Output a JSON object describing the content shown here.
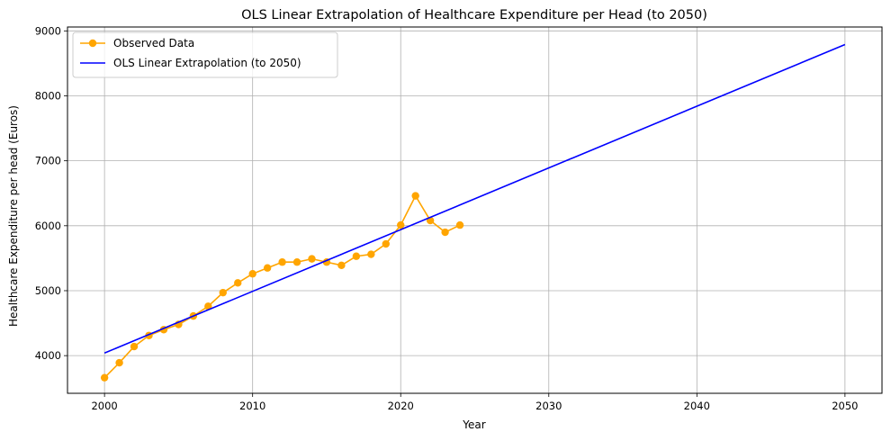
{
  "chart_data": {
    "type": "line",
    "title": "OLS Linear Extrapolation of Healthcare Expenditure per Head (to 2050)",
    "xlabel": "Year",
    "ylabel": "Healthcare Expenditure per head (Euros)",
    "xlim": [
      1997.5,
      2052.5
    ],
    "ylim": [
      3420,
      9060
    ],
    "xticks": [
      2000,
      2010,
      2020,
      2030,
      2040,
      2050
    ],
    "yticks": [
      4000,
      5000,
      6000,
      7000,
      8000,
      9000
    ],
    "grid": true,
    "legend_position": "top-left",
    "series": [
      {
        "name": "Observed Data",
        "color": "#ffa500",
        "marker": "circle",
        "x": [
          2000,
          2001,
          2002,
          2003,
          2004,
          2005,
          2006,
          2007,
          2008,
          2009,
          2010,
          2011,
          2012,
          2013,
          2014,
          2015,
          2016,
          2017,
          2018,
          2019,
          2020,
          2021,
          2022,
          2023,
          2024
        ],
        "y": [
          3660,
          3890,
          4140,
          4310,
          4400,
          4480,
          4610,
          4760,
          4970,
          5120,
          5260,
          5350,
          5440,
          5440,
          5490,
          5440,
          5390,
          5530,
          5560,
          5720,
          6010,
          6460,
          6080,
          5900,
          6010
        ]
      },
      {
        "name": "OLS Linear Extrapolation (to 2050)",
        "color": "#0000ff",
        "marker": "none",
        "x": [
          2000,
          2050
        ],
        "y": [
          4040,
          8790
        ]
      }
    ]
  }
}
